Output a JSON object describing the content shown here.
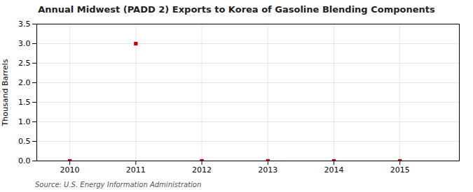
{
  "chart_data": {
    "type": "scatter",
    "title": "Annual Midwest (PADD 2) Exports to Korea of Gasoline Blending Components",
    "ylabel": "Thousand Barrels",
    "source": "Source: U.S. Energy Information Administration",
    "x": [
      2010,
      2011,
      2012,
      2013,
      2014,
      2015
    ],
    "values": [
      0,
      3.0,
      0,
      0,
      0,
      0
    ],
    "color": "#cc0000",
    "marker": "square",
    "xlim": [
      2009.5,
      2015.9
    ],
    "ylim": [
      0.0,
      3.5
    ],
    "xticks": [
      2010,
      2011,
      2012,
      2013,
      2014,
      2015
    ],
    "yticks": [
      {
        "value": 0.0,
        "label": "0.0"
      },
      0.5,
      {
        "value": 1.0,
        "label": "1.0"
      },
      1.5,
      {
        "value": 2.0,
        "label": "2.0"
      },
      2.5,
      {
        "value": 3.0,
        "label": "3.0"
      },
      3.5
    ],
    "grid": true
  }
}
